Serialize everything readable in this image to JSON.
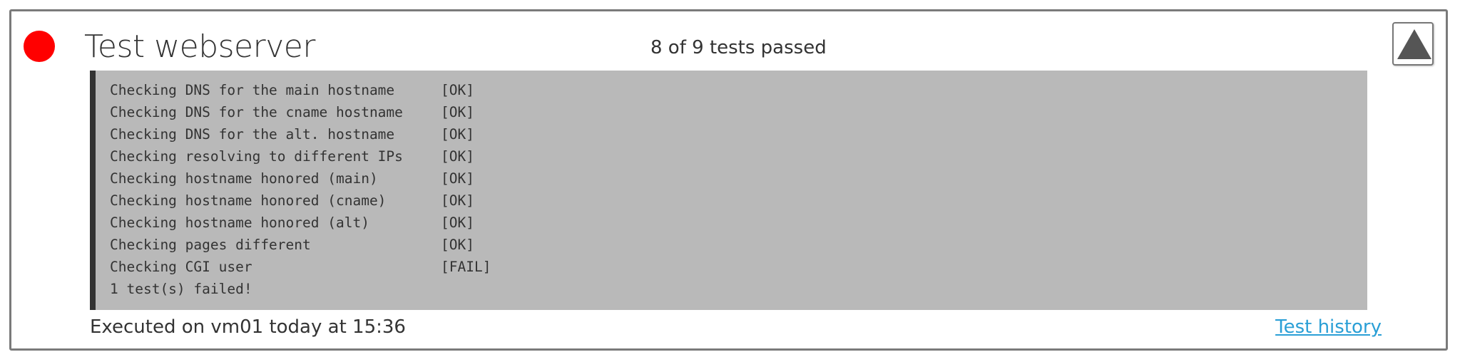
{
  "test": {
    "title": "Test webserver",
    "status_color": "#ff0000",
    "summary": "8 of 9 tests passed",
    "collapse_icon": "triangle-up-icon"
  },
  "output": {
    "lines": [
      {
        "check": "Checking DNS for the main hostname",
        "result": "[OK]"
      },
      {
        "check": "Checking DNS for the cname hostname",
        "result": "[OK]"
      },
      {
        "check": "Checking DNS for the alt. hostname",
        "result": "[OK]"
      },
      {
        "check": "Checking resolving to different IPs",
        "result": "[OK]"
      },
      {
        "check": "Checking hostname honored (main)",
        "result": "[OK]"
      },
      {
        "check": "Checking hostname honored (cname)",
        "result": "[OK]"
      },
      {
        "check": "Checking hostname honored (alt)",
        "result": "[OK]"
      },
      {
        "check": "Checking pages different",
        "result": "[OK]"
      },
      {
        "check": "Checking CGI user",
        "result": "[FAIL]"
      },
      {
        "check": "1 test(s) failed!",
        "result": ""
      }
    ]
  },
  "footer": {
    "executed": "Executed on vm01 today at 15:36",
    "history_link": "Test history",
    "link_color": "#2a9fd6"
  }
}
